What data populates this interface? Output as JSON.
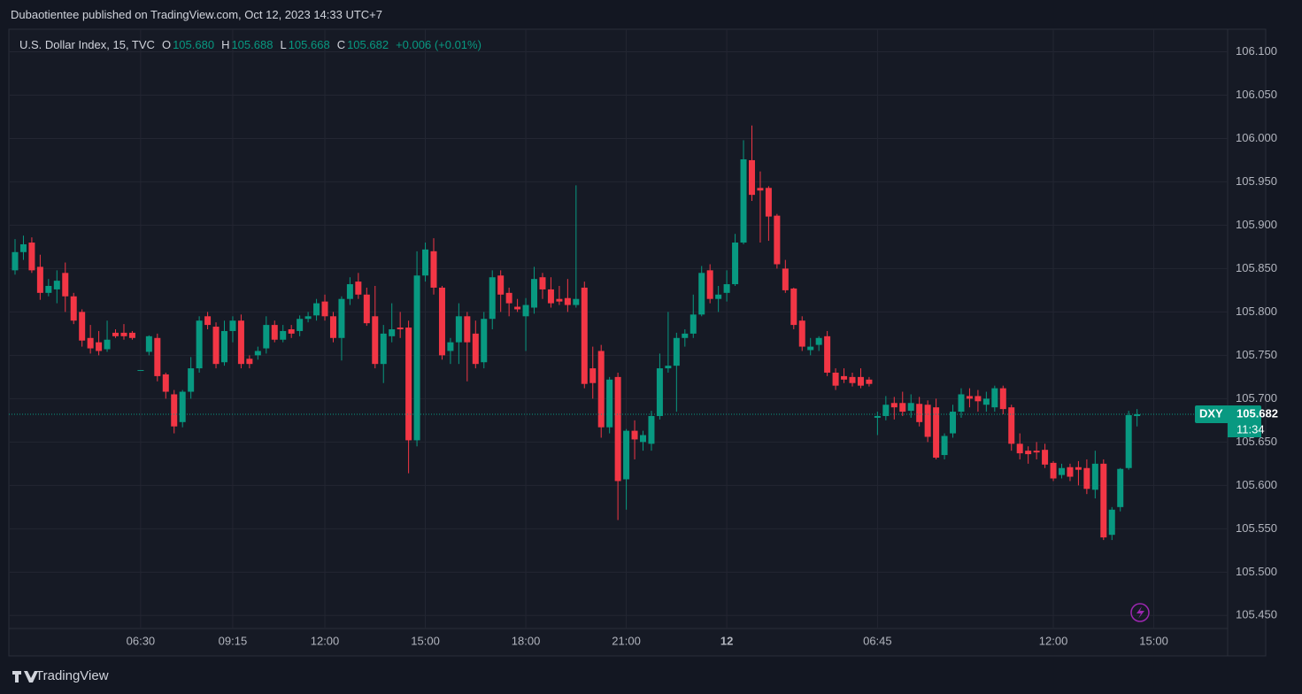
{
  "header": {
    "publisher": "Dubaotientee published on TradingView.com, Oct 12, 2023 14:33 UTC+7"
  },
  "chart_data": {
    "type": "candlestick",
    "legend": {
      "symbol": "U.S. Dollar Index, 15, TVC",
      "items": [
        {
          "key": "O",
          "value": "105.680"
        },
        {
          "key": "H",
          "value": "105.688"
        },
        {
          "key": "L",
          "value": "105.668"
        },
        {
          "key": "C",
          "value": "105.682"
        }
      ],
      "change": "+0.006 (+0.01%)"
    },
    "up_color": "#089981",
    "down_color": "#f23645",
    "ylim": [
      105.435,
      106.126
    ],
    "yticks": [
      {
        "value": 105.45,
        "label": "105.450"
      },
      {
        "value": 105.5,
        "label": "105.500"
      },
      {
        "value": 105.55,
        "label": "105.550"
      },
      {
        "value": 105.6,
        "label": "105.600"
      },
      {
        "value": 105.65,
        "label": "105.650"
      },
      {
        "value": 105.7,
        "label": "105.700"
      },
      {
        "value": 105.75,
        "label": "105.750"
      },
      {
        "value": 105.8,
        "label": "105.800"
      },
      {
        "value": 105.85,
        "label": "105.850"
      },
      {
        "value": 105.9,
        "label": "105.900"
      },
      {
        "value": 105.95,
        "label": "105.950"
      },
      {
        "value": 106,
        "label": "106.000"
      },
      {
        "value": 106.05,
        "label": "106.050"
      },
      {
        "value": 106.1,
        "label": "106.100"
      }
    ],
    "grid": true,
    "categories": [
      null,
      null,
      null,
      null,
      null,
      null,
      null,
      null,
      null,
      null,
      null,
      null,
      null,
      null,
      null,
      "06:30",
      null,
      null,
      null,
      null,
      null,
      null,
      null,
      null,
      null,
      null,
      "09:15",
      null,
      null,
      null,
      null,
      null,
      null,
      null,
      null,
      null,
      null,
      "12:00",
      null,
      null,
      null,
      null,
      null,
      null,
      null,
      null,
      null,
      null,
      null,
      "15:00",
      null,
      null,
      null,
      null,
      null,
      null,
      null,
      null,
      null,
      null,
      null,
      "18:00",
      null,
      null,
      null,
      null,
      null,
      null,
      null,
      null,
      null,
      null,
      null,
      "21:00",
      null,
      null,
      null,
      null,
      null,
      null,
      null,
      null,
      null,
      null,
      null,
      "12",
      null,
      null,
      null,
      null,
      null,
      null,
      null,
      null,
      null,
      null,
      null,
      null,
      null,
      null,
      null,
      null,
      null,
      "06:45",
      null,
      null,
      null,
      null,
      null,
      null,
      null,
      null,
      null,
      null,
      null,
      null,
      null,
      null,
      null,
      null,
      null,
      null,
      null,
      null,
      "12:00",
      null,
      null,
      null,
      null,
      null,
      null,
      null,
      null,
      null,
      null,
      null,
      "15:00"
    ],
    "open": [
      105.848,
      105.869,
      105.88,
      105.852,
      105.822,
      105.826,
      105.845,
      105.818,
      105.8,
      105.77,
      105.765,
      105.757,
      105.776,
      105.776,
      105.776,
      105.733,
      105.754,
      105.77,
      105.728,
      105.705,
      105.673,
      105.708,
      105.735,
      105.795,
      105.783,
      105.742,
      105.778,
      105.79,
      105.746,
      105.75,
      105.758,
      105.785,
      105.768,
      105.78,
      105.778,
      105.792,
      105.796,
      105.812,
      105.795,
      105.77,
      105.815,
      105.835,
      105.82,
      105.795,
      105.74,
      105.772,
      105.782,
      105.782,
      105.652,
      105.842,
      105.87,
      105.828,
      105.755,
      105.765,
      105.795,
      105.775,
      105.742,
      105.792,
      105.842,
      105.822,
      105.806,
      105.795,
      105.805,
      105.84,
      105.826,
      105.815,
      105.816,
      105.808,
      105.828,
      105.735,
      105.755,
      105.667,
      105.725,
      105.607,
      105.663,
      105.65,
      105.648,
      105.68,
      105.735,
      105.738,
      105.77,
      105.775,
      105.797,
      105.848,
      105.815,
      105.822,
      105.832,
      105.88,
      105.975,
      105.943,
      105.943,
      105.911,
      105.85,
      105.827,
      105.79,
      105.756,
      105.762,
      105.772,
      105.73,
      105.726,
      105.725,
      105.725,
      105.722,
      105.678,
      105.68,
      105.695,
      105.695,
      105.686,
      105.694,
      105.693,
      105.69,
      105.635,
      105.66,
      105.685,
      105.703,
      105.703,
      105.693,
      105.69,
      105.712,
      105.69,
      105.648,
      105.64,
      105.64,
      105.641,
      105.626,
      105.612,
      105.621,
      105.621,
      105.62,
      105.595,
      105.625,
      105.543,
      105.575,
      105.62,
      105.68,
      null,
      null
    ],
    "high": [
      105.884,
      105.888,
      105.886,
      105.866,
      105.838,
      105.848,
      105.857,
      105.822,
      105.803,
      105.785,
      105.778,
      105.79,
      105.78,
      105.786,
      105.778,
      105.733,
      105.773,
      105.775,
      105.73,
      105.71,
      105.71,
      105.748,
      105.795,
      105.8,
      105.788,
      105.79,
      105.795,
      105.797,
      105.75,
      105.76,
      105.795,
      105.79,
      105.785,
      105.785,
      105.796,
      105.8,
      105.815,
      105.82,
      105.8,
      105.818,
      105.84,
      105.845,
      105.828,
      105.83,
      105.785,
      105.81,
      105.8,
      105.79,
      105.87,
      105.88,
      105.885,
      105.83,
      105.77,
      105.81,
      105.8,
      105.79,
      105.8,
      105.848,
      105.848,
      105.828,
      105.815,
      105.816,
      105.852,
      105.845,
      105.84,
      105.83,
      105.838,
      105.946,
      105.835,
      105.76,
      105.762,
      105.725,
      105.73,
      105.665,
      105.675,
      105.663,
      105.686,
      105.752,
      105.8,
      105.776,
      105.78,
      105.82,
      105.853,
      105.855,
      105.83,
      105.848,
      105.89,
      105.998,
      106.015,
      105.962,
      105.945,
      105.913,
      105.86,
      105.828,
      105.795,
      105.77,
      105.772,
      105.778,
      105.735,
      105.735,
      105.73,
      105.735,
      105.725,
      105.685,
      105.703,
      105.702,
      105.708,
      105.705,
      105.702,
      105.698,
      105.7,
      105.66,
      105.693,
      105.712,
      105.712,
      105.71,
      105.708,
      105.715,
      105.715,
      105.693,
      105.66,
      105.645,
      105.65,
      105.648,
      105.628,
      105.625,
      105.625,
      105.628,
      105.63,
      105.64,
      105.63,
      105.575,
      105.62,
      105.686,
      105.688,
      null,
      null
    ],
    "low": [
      105.843,
      105.86,
      105.845,
      105.814,
      105.818,
      105.81,
      105.8,
      105.786,
      105.76,
      105.752,
      105.75,
      105.754,
      105.77,
      105.768,
      105.768,
      105.733,
      105.75,
      105.72,
      105.7,
      105.66,
      105.667,
      105.7,
      105.73,
      105.78,
      105.735,
      105.738,
      105.765,
      105.735,
      105.735,
      105.745,
      105.752,
      105.765,
      105.765,
      105.77,
      105.772,
      105.788,
      105.79,
      105.79,
      105.765,
      105.744,
      105.808,
      105.815,
      105.784,
      105.735,
      105.718,
      105.765,
      105.77,
      105.614,
      105.645,
      105.835,
      105.82,
      105.745,
      105.74,
      105.74,
      105.72,
      105.735,
      105.735,
      105.78,
      105.8,
      105.795,
      105.8,
      105.755,
      105.798,
      105.815,
      105.805,
      105.808,
      105.8,
      105.805,
      105.712,
      105.7,
      105.655,
      105.66,
      105.56,
      105.572,
      105.63,
      105.64,
      105.64,
      105.676,
      105.73,
      105.685,
      105.76,
      105.77,
      105.795,
      105.81,
      105.8,
      105.812,
      105.83,
      105.878,
      105.928,
      105.88,
      105.882,
      105.85,
      105.822,
      105.78,
      105.755,
      105.75,
      105.755,
      105.726,
      105.71,
      105.718,
      105.714,
      105.712,
      105.714,
      105.658,
      105.675,
      105.676,
      105.68,
      105.678,
      105.668,
      105.65,
      105.63,
      105.63,
      105.655,
      105.678,
      105.69,
      105.685,
      105.685,
      105.685,
      105.682,
      105.64,
      105.63,
      105.625,
      105.63,
      105.62,
      105.605,
      105.608,
      105.605,
      105.6,
      105.59,
      105.585,
      105.537,
      105.537,
      105.57,
      105.618,
      105.668,
      null,
      null
    ],
    "close": [
      105.869,
      105.878,
      105.848,
      105.822,
      105.83,
      105.836,
      105.818,
      105.79,
      105.767,
      105.758,
      105.755,
      105.768,
      105.772,
      105.772,
      105.77,
      105.733,
      105.772,
      105.726,
      105.708,
      105.668,
      105.708,
      105.735,
      105.79,
      105.785,
      105.74,
      105.778,
      105.79,
      105.74,
      105.74,
      105.755,
      105.785,
      105.768,
      105.778,
      105.775,
      105.792,
      105.795,
      105.81,
      105.795,
      105.77,
      105.815,
      105.832,
      105.82,
      105.787,
      105.74,
      105.775,
      105.78,
      105.78,
      105.652,
      105.842,
      105.872,
      105.828,
      105.75,
      105.765,
      105.795,
      105.765,
      105.74,
      105.792,
      105.84,
      105.82,
      105.81,
      105.803,
      105.808,
      105.838,
      105.826,
      105.81,
      105.812,
      105.808,
      105.815,
      105.717,
      105.718,
      105.667,
      105.722,
      105.605,
      105.663,
      105.653,
      105.658,
      105.68,
      105.735,
      105.738,
      105.77,
      105.775,
      105.797,
      105.845,
      105.815,
      105.82,
      105.832,
      105.88,
      105.976,
      105.935,
      105.94,
      105.91,
      105.855,
      105.825,
      105.785,
      105.76,
      105.76,
      105.77,
      105.73,
      105.715,
      105.722,
      105.718,
      105.715,
      105.717,
      105.68,
      105.693,
      105.69,
      105.685,
      105.695,
      105.673,
      105.656,
      105.632,
      105.657,
      105.685,
      105.705,
      105.7,
      105.697,
      105.7,
      105.712,
      105.688,
      105.648,
      105.637,
      105.636,
      105.638,
      105.624,
      105.608,
      105.62,
      105.61,
      105.618,
      105.596,
      105.625,
      105.54,
      105.572,
      105.619,
      105.681,
      105.682,
      null,
      null
    ],
    "last_price": {
      "symbol": "DXY",
      "value": 105.682,
      "countdown": "11:34",
      "color": "#089981"
    }
  },
  "footer": {
    "brand": "TradingView"
  }
}
